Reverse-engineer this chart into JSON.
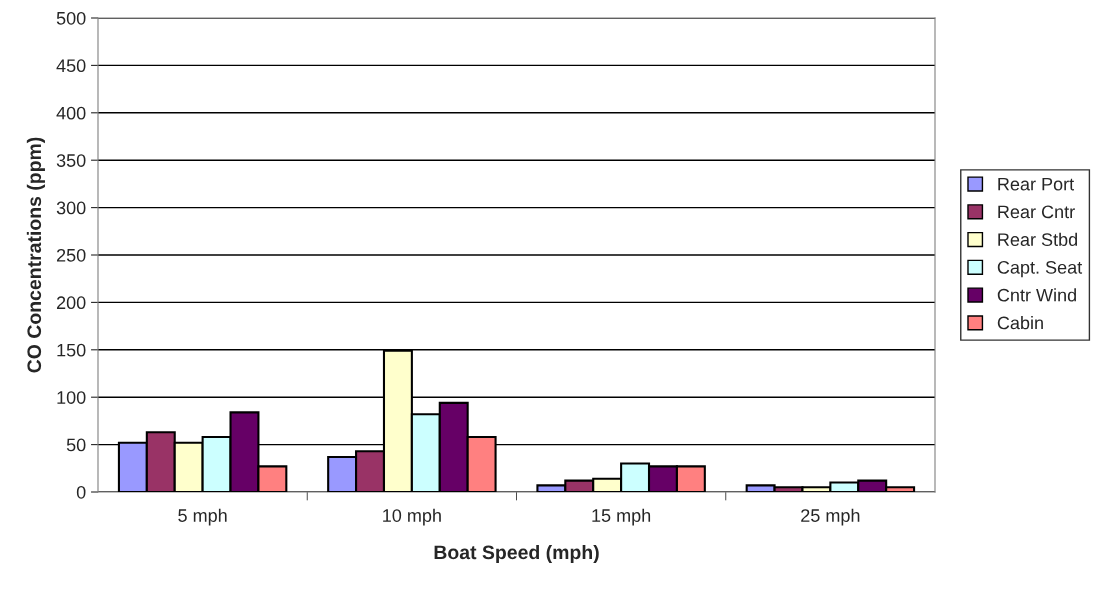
{
  "chart_data": {
    "type": "bar",
    "xlabel": "Boat Speed (mph)",
    "ylabel": "CO Concentrations (ppm)",
    "categories": [
      "5 mph",
      "10 mph",
      "15 mph",
      "25 mph"
    ],
    "series": [
      {
        "name": "Rear Port",
        "color": "#9999ff",
        "values": [
          52,
          37,
          7,
          7
        ]
      },
      {
        "name": "Rear Cntr",
        "color": "#993366",
        "values": [
          63,
          43,
          12,
          5
        ]
      },
      {
        "name": "Rear Stbd",
        "color": "#ffffcc",
        "values": [
          52,
          149,
          14,
          5
        ]
      },
      {
        "name": "Capt. Seat",
        "color": "#ccffff",
        "values": [
          58,
          82,
          30,
          10
        ]
      },
      {
        "name": "Cntr Wind",
        "color": "#660066",
        "values": [
          84,
          94,
          27,
          12
        ]
      },
      {
        "name": "Cabin",
        "color": "#ff8080",
        "values": [
          27,
          58,
          27,
          5
        ]
      }
    ],
    "ylim": [
      0,
      500
    ],
    "yticks": [
      0,
      50,
      100,
      150,
      200,
      250,
      300,
      350,
      400,
      450,
      500
    ],
    "grid": "y",
    "legend": "right"
  }
}
